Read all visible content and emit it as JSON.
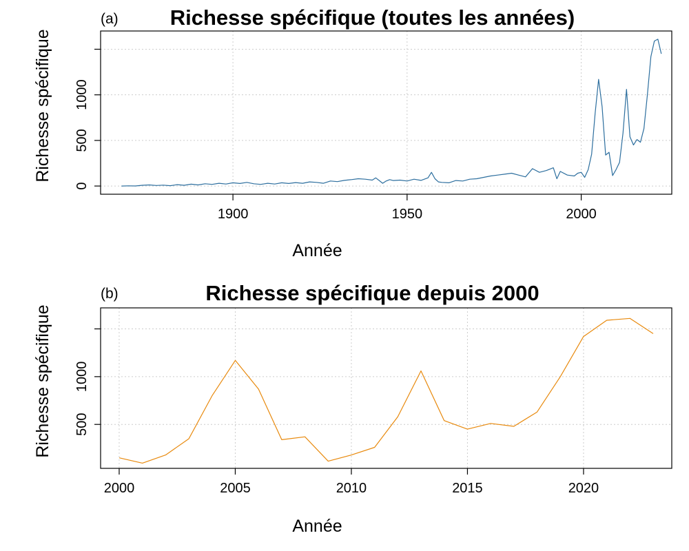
{
  "chart_data": [
    {
      "panel_label": "(a)",
      "type": "line",
      "title": "Richesse spécifique (toutes les années)",
      "xlabel": "Année",
      "ylabel": "Richesse spécifique",
      "xlim": [
        1862,
        2026
      ],
      "ylim": [
        -90,
        1700
      ],
      "xticks": [
        1900,
        1950,
        2000
      ],
      "yticks": [
        0,
        500,
        1000,
        1500
      ],
      "ytick_labels": [
        "0",
        "500",
        "1000",
        ""
      ],
      "grid": true,
      "color": "#2c6e9e",
      "x": [
        1868,
        1870,
        1872,
        1874,
        1876,
        1878,
        1880,
        1882,
        1884,
        1886,
        1888,
        1890,
        1892,
        1894,
        1896,
        1898,
        1900,
        1902,
        1904,
        1906,
        1908,
        1910,
        1912,
        1914,
        1916,
        1918,
        1920,
        1922,
        1924,
        1926,
        1928,
        1930,
        1932,
        1934,
        1936,
        1938,
        1940,
        1941,
        1942,
        1943,
        1944,
        1945,
        1946,
        1948,
        1950,
        1952,
        1954,
        1956,
        1957,
        1958,
        1959,
        1960,
        1962,
        1964,
        1966,
        1968,
        1970,
        1972,
        1974,
        1976,
        1978,
        1980,
        1982,
        1984,
        1986,
        1988,
        1990,
        1992,
        1993,
        1994,
        1996,
        1998,
        1999,
        2000,
        2001,
        2002,
        2003,
        2004,
        2005,
        2006,
        2007,
        2008,
        2009,
        2010,
        2011,
        2012,
        2013,
        2014,
        2015,
        2016,
        2017,
        2018,
        2019,
        2020,
        2021,
        2022,
        2023
      ],
      "y": [
        0,
        2,
        1,
        8,
        12,
        6,
        10,
        4,
        15,
        8,
        20,
        12,
        25,
        18,
        30,
        22,
        35,
        28,
        40,
        25,
        18,
        30,
        22,
        35,
        28,
        38,
        30,
        45,
        40,
        30,
        55,
        48,
        62,
        70,
        80,
        75,
        65,
        90,
        60,
        30,
        55,
        70,
        60,
        65,
        55,
        75,
        62,
        90,
        150,
        80,
        45,
        40,
        35,
        60,
        55,
        75,
        80,
        95,
        110,
        120,
        130,
        140,
        120,
        100,
        190,
        150,
        170,
        200,
        80,
        160,
        120,
        110,
        140,
        150,
        95,
        180,
        350,
        800,
        1170,
        870,
        340,
        370,
        115,
        180,
        260,
        580,
        1060,
        540,
        450,
        510,
        480,
        630,
        1000,
        1420,
        1590,
        1610,
        1450
      ]
    },
    {
      "panel_label": "(b)",
      "type": "line",
      "title": "Richesse spécifique depuis 2000",
      "xlabel": "Année",
      "ylabel": "Richesse spécifique",
      "xlim": [
        1999.2,
        2023.8
      ],
      "ylim": [
        40,
        1720
      ],
      "xticks": [
        2000,
        2005,
        2010,
        2015,
        2020
      ],
      "yticks": [
        500,
        1000,
        1500
      ],
      "ytick_labels": [
        "500",
        "1000",
        ""
      ],
      "grid": true,
      "color": "#e8890c",
      "x": [
        2000,
        2001,
        2002,
        2003,
        2004,
        2005,
        2006,
        2007,
        2008,
        2009,
        2010,
        2011,
        2012,
        2013,
        2014,
        2015,
        2016,
        2017,
        2018,
        2019,
        2020,
        2021,
        2022,
        2023
      ],
      "y": [
        150,
        95,
        180,
        350,
        800,
        1170,
        870,
        340,
        370,
        115,
        180,
        260,
        580,
        1060,
        540,
        450,
        510,
        480,
        630,
        1000,
        1420,
        1590,
        1610,
        1450
      ]
    }
  ]
}
